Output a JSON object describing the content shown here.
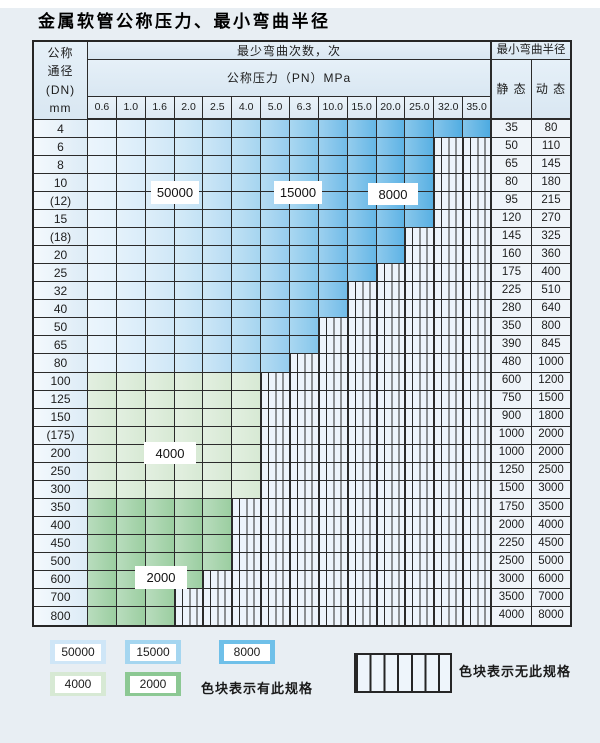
{
  "title": "金属软管公称压力、最小弯曲半径",
  "table": {
    "header": {
      "dn_lines": [
        "公称",
        "通径",
        "(DN)",
        "mm"
      ],
      "cycles": "最少弯曲次数，次",
      "pressure": "公称压力（PN）MPa",
      "columns": [
        "0.6",
        "1.0",
        "1.6",
        "2.0",
        "2.5",
        "4.0",
        "5.0",
        "6.3",
        "10.0",
        "15.0",
        "20.0",
        "25.0",
        "32.0",
        "35.0"
      ],
      "radius": "最小弯曲半径",
      "static": "静 态",
      "dynamic": "动 态"
    },
    "rows": [
      {
        "dn": "4",
        "span": 14,
        "zone": "blue",
        "static": "35",
        "dynamic": "80"
      },
      {
        "dn": "6",
        "span": 12,
        "zone": "blue",
        "static": "50",
        "dynamic": "110"
      },
      {
        "dn": "8",
        "span": 12,
        "zone": "blue",
        "static": "65",
        "dynamic": "145"
      },
      {
        "dn": "10",
        "span": 12,
        "zone": "blue",
        "static": "80",
        "dynamic": "180"
      },
      {
        "dn": "(12)",
        "span": 12,
        "zone": "blue",
        "static": "95",
        "dynamic": "215"
      },
      {
        "dn": "15",
        "span": 12,
        "zone": "blue",
        "static": "120",
        "dynamic": "270"
      },
      {
        "dn": "(18)",
        "span": 11,
        "zone": "blue",
        "static": "145",
        "dynamic": "325"
      },
      {
        "dn": "20",
        "span": 11,
        "zone": "blue",
        "static": "160",
        "dynamic": "360"
      },
      {
        "dn": "25",
        "span": 10,
        "zone": "blue",
        "static": "175",
        "dynamic": "400"
      },
      {
        "dn": "32",
        "span": 9,
        "zone": "blue",
        "static": "225",
        "dynamic": "510"
      },
      {
        "dn": "40",
        "span": 9,
        "zone": "blue",
        "static": "280",
        "dynamic": "640"
      },
      {
        "dn": "50",
        "span": 8,
        "zone": "blue",
        "static": "350",
        "dynamic": "800"
      },
      {
        "dn": "65",
        "span": 8,
        "zone": "blue",
        "static": "390",
        "dynamic": "845"
      },
      {
        "dn": "80",
        "span": 7,
        "zone": "blue",
        "static": "480",
        "dynamic": "1000"
      },
      {
        "dn": "100",
        "span": 6,
        "zone": "green4000",
        "static": "600",
        "dynamic": "1200"
      },
      {
        "dn": "125",
        "span": 6,
        "zone": "green4000",
        "static": "750",
        "dynamic": "1500"
      },
      {
        "dn": "150",
        "span": 6,
        "zone": "green4000",
        "static": "900",
        "dynamic": "1800"
      },
      {
        "dn": "(175)",
        "span": 6,
        "zone": "green4000",
        "static": "1000",
        "dynamic": "2000"
      },
      {
        "dn": "200",
        "span": 6,
        "zone": "green4000",
        "static": "1000",
        "dynamic": "2000"
      },
      {
        "dn": "250",
        "span": 6,
        "zone": "green4000",
        "static": "1250",
        "dynamic": "2500"
      },
      {
        "dn": "300",
        "span": 6,
        "zone": "green4000",
        "static": "1500",
        "dynamic": "3000"
      },
      {
        "dn": "350",
        "span": 5,
        "zone": "green2000",
        "static": "1750",
        "dynamic": "3500"
      },
      {
        "dn": "400",
        "span": 5,
        "zone": "green2000",
        "static": "2000",
        "dynamic": "4000"
      },
      {
        "dn": "450",
        "span": 5,
        "zone": "green2000",
        "static": "2250",
        "dynamic": "4500"
      },
      {
        "dn": "500",
        "span": 5,
        "zone": "green2000",
        "static": "2500",
        "dynamic": "5000"
      },
      {
        "dn": "600",
        "span": 4,
        "zone": "green2000",
        "static": "3000",
        "dynamic": "6000"
      },
      {
        "dn": "700",
        "span": 3,
        "zone": "green2000",
        "static": "3500",
        "dynamic": "7000"
      },
      {
        "dn": "800",
        "span": 3,
        "zone": "green2000",
        "static": "4000",
        "dynamic": "8000"
      }
    ],
    "overlays": {
      "l50000": "50000",
      "l15000": "15000",
      "l8000": "8000",
      "l4000": "4000",
      "l2000": "2000"
    }
  },
  "legend": {
    "l50000": "50000",
    "l15000": "15000",
    "l8000": "8000",
    "l4000": "4000",
    "l2000": "2000",
    "has_spec": "色块表示有此规格",
    "no_spec": "色块表示无此规格"
  },
  "colors": {
    "page_bg": "#e8eef3",
    "border": "#262626",
    "blue_palette": [
      "#e3f1fb",
      "#d9ecf9",
      "#cfe7f7",
      "#c3e2f5",
      "#b7dcf3",
      "#a6d5f0",
      "#96cdee",
      "#85c6eb",
      "#72bce8",
      "#66b7e6",
      "#5eb3e5",
      "#58b0e3",
      "#52ade2",
      "#4eabe1"
    ],
    "green_4000": "#d7e9d4",
    "green_2000": "#9bcea1",
    "hatch_bg": "#edf4fb",
    "legend_swatches": {
      "l50000": "#cfe6f7",
      "l15000": "#a5d6f0",
      "l8000": "#6fc0e9",
      "l4000": "#d7e9d4",
      "l2000": "#8cc893"
    }
  }
}
